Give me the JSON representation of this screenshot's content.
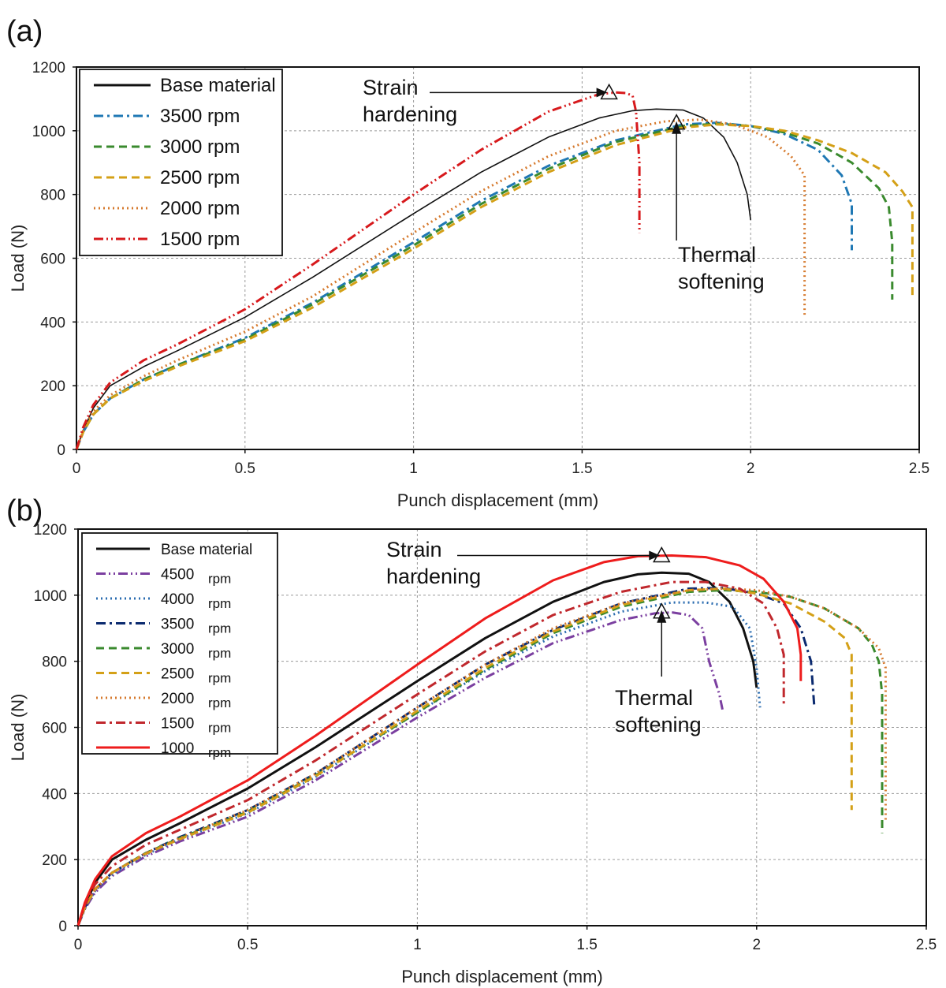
{
  "chart_data": [
    {
      "panel_label": "(a)",
      "type": "line",
      "xlabel": "Punch displacement (mm)",
      "ylabel": "Load (N)",
      "xlim": [
        0,
        2.5
      ],
      "ylim": [
        0,
        1200
      ],
      "xticks": [
        "0",
        "0.5",
        "1",
        "1.5",
        "2",
        "2.5"
      ],
      "yticks": [
        "0",
        "200",
        "400",
        "600",
        "800",
        "1000",
        "1200"
      ],
      "grid": true,
      "legend_position": "top-left",
      "series": [
        {
          "name": "Base material",
          "color": "#111111",
          "style": "solid",
          "x": [
            0,
            0.02,
            0.05,
            0.1,
            0.2,
            0.3,
            0.5,
            0.7,
            1.0,
            1.2,
            1.4,
            1.55,
            1.65,
            1.72,
            1.8,
            1.86,
            1.92,
            1.96,
            1.99,
            2.0
          ],
          "y": [
            0,
            60,
            130,
            200,
            260,
            310,
            415,
            540,
            740,
            870,
            980,
            1040,
            1063,
            1068,
            1065,
            1040,
            980,
            900,
            800,
            720
          ]
        },
        {
          "name": "3500 rpm",
          "color": "#1f78b4",
          "style": "dashdot",
          "x": [
            0,
            0.02,
            0.05,
            0.1,
            0.2,
            0.3,
            0.5,
            0.7,
            1.0,
            1.2,
            1.4,
            1.6,
            1.8,
            1.9,
            2.0,
            2.1,
            2.2,
            2.27,
            2.3,
            2.3
          ],
          "y": [
            0,
            55,
            110,
            160,
            220,
            265,
            350,
            460,
            650,
            780,
            890,
            970,
            1020,
            1025,
            1015,
            990,
            940,
            860,
            770,
            625
          ]
        },
        {
          "name": "3000 rpm",
          "color": "#3a8a2e",
          "style": "dashed",
          "x": [
            0,
            0.02,
            0.05,
            0.1,
            0.2,
            0.3,
            0.5,
            0.7,
            1.0,
            1.2,
            1.4,
            1.6,
            1.8,
            1.9,
            2.0,
            2.1,
            2.2,
            2.3,
            2.38,
            2.41,
            2.42,
            2.42
          ],
          "y": [
            0,
            55,
            110,
            160,
            220,
            265,
            345,
            455,
            640,
            770,
            880,
            965,
            1015,
            1022,
            1015,
            995,
            960,
            900,
            820,
            760,
            650,
            470
          ]
        },
        {
          "name": "2500 rpm",
          "color": "#d4a017",
          "style": "dashed",
          "x": [
            0,
            0.02,
            0.05,
            0.1,
            0.2,
            0.3,
            0.5,
            0.7,
            1.0,
            1.2,
            1.4,
            1.6,
            1.8,
            1.9,
            2.0,
            2.1,
            2.2,
            2.3,
            2.4,
            2.45,
            2.48,
            2.48
          ],
          "y": [
            0,
            55,
            110,
            160,
            215,
            260,
            340,
            445,
            630,
            760,
            870,
            955,
            1010,
            1020,
            1015,
            1000,
            970,
            930,
            870,
            810,
            760,
            480
          ]
        },
        {
          "name": "2000 rpm",
          "color": "#d67a2e",
          "style": "dotted",
          "x": [
            0,
            0.02,
            0.05,
            0.1,
            0.2,
            0.3,
            0.5,
            0.7,
            1.0,
            1.2,
            1.4,
            1.6,
            1.75,
            1.85,
            1.95,
            2.05,
            2.12,
            2.16,
            2.16
          ],
          "y": [
            0,
            60,
            120,
            170,
            230,
            280,
            370,
            480,
            680,
            810,
            920,
            1000,
            1030,
            1035,
            1020,
            980,
            920,
            860,
            420
          ]
        },
        {
          "name": "1500 rpm",
          "color": "#d7191c",
          "style": "dashdotdot",
          "x": [
            0,
            0.02,
            0.05,
            0.1,
            0.2,
            0.3,
            0.5,
            0.7,
            1.0,
            1.2,
            1.4,
            1.55,
            1.6,
            1.63,
            1.65,
            1.66,
            1.67,
            1.67
          ],
          "y": [
            0,
            70,
            140,
            210,
            280,
            330,
            440,
            580,
            800,
            940,
            1060,
            1115,
            1120,
            1118,
            1110,
            1060,
            900,
            680
          ]
        }
      ],
      "annotations": [
        {
          "text_lines": [
            "Strain",
            "hardening"
          ],
          "arrow_to": [
            1.58,
            1120
          ],
          "marker": "triangle"
        },
        {
          "text_lines": [
            "Thermal",
            "softening"
          ],
          "arrow_to": [
            1.78,
            1025
          ],
          "marker": "triangle"
        }
      ]
    },
    {
      "panel_label": "(b)",
      "type": "line",
      "xlabel": "Punch displacement (mm)",
      "ylabel": "Load (N)",
      "xlim": [
        0,
        2.5
      ],
      "ylim": [
        0,
        1200
      ],
      "xticks": [
        "0",
        "0.5",
        "1",
        "1.5",
        "2",
        "2.5"
      ],
      "yticks": [
        "0",
        "200",
        "400",
        "600",
        "800",
        "1000",
        "1200"
      ],
      "grid": true,
      "legend_position": "top-left",
      "series": [
        {
          "name": "Base material",
          "unit": "",
          "color": "#111111",
          "style": "solid",
          "x": [
            0,
            0.02,
            0.05,
            0.1,
            0.2,
            0.3,
            0.5,
            0.7,
            1.0,
            1.2,
            1.4,
            1.55,
            1.65,
            1.72,
            1.8,
            1.86,
            1.92,
            1.96,
            1.99,
            2.0
          ],
          "y": [
            0,
            60,
            130,
            200,
            260,
            310,
            415,
            540,
            740,
            870,
            980,
            1040,
            1063,
            1068,
            1065,
            1040,
            980,
            900,
            800,
            720
          ]
        },
        {
          "name": "4500",
          "unit": "rpm",
          "color": "#7b3fa0",
          "style": "dashdotdot",
          "x": [
            0,
            0.02,
            0.05,
            0.1,
            0.2,
            0.3,
            0.5,
            0.7,
            1.0,
            1.2,
            1.4,
            1.6,
            1.7,
            1.75,
            1.8,
            1.84,
            1.86,
            1.89,
            1.9
          ],
          "y": [
            0,
            50,
            100,
            150,
            210,
            255,
            330,
            440,
            630,
            750,
            855,
            925,
            945,
            948,
            940,
            900,
            800,
            700,
            650
          ]
        },
        {
          "name": "4000",
          "unit": "rpm",
          "color": "#2b6cb0",
          "style": "dotted",
          "x": [
            0,
            0.02,
            0.05,
            0.1,
            0.2,
            0.3,
            0.5,
            0.7,
            1.0,
            1.2,
            1.4,
            1.6,
            1.75,
            1.85,
            1.93,
            1.98,
            2.0,
            2.01
          ],
          "y": [
            0,
            52,
            105,
            155,
            215,
            262,
            340,
            450,
            645,
            770,
            875,
            950,
            978,
            978,
            965,
            900,
            780,
            660
          ]
        },
        {
          "name": "3500",
          "unit": "rpm",
          "color": "#0b2a6f",
          "style": "dashdot",
          "x": [
            0,
            0.02,
            0.05,
            0.1,
            0.2,
            0.3,
            0.5,
            0.7,
            1.0,
            1.2,
            1.4,
            1.6,
            1.8,
            1.9,
            2.0,
            2.08,
            2.13,
            2.16,
            2.17
          ],
          "y": [
            0,
            55,
            110,
            160,
            220,
            268,
            350,
            460,
            660,
            790,
            895,
            975,
            1020,
            1022,
            1005,
            975,
            900,
            800,
            660
          ]
        },
        {
          "name": "3000",
          "unit": "rpm",
          "color": "#3a8a2e",
          "style": "dashed",
          "x": [
            0,
            0.02,
            0.05,
            0.1,
            0.2,
            0.3,
            0.5,
            0.7,
            1.0,
            1.2,
            1.4,
            1.6,
            1.8,
            1.9,
            2.0,
            2.1,
            2.2,
            2.3,
            2.34,
            2.36,
            2.37,
            2.37
          ],
          "y": [
            0,
            55,
            110,
            160,
            220,
            265,
            345,
            455,
            645,
            775,
            885,
            965,
            1010,
            1015,
            1010,
            995,
            960,
            900,
            850,
            800,
            700,
            280
          ]
        },
        {
          "name": "2500",
          "unit": "rpm",
          "color": "#d4a017",
          "style": "dashed",
          "x": [
            0,
            0.02,
            0.05,
            0.1,
            0.2,
            0.3,
            0.5,
            0.7,
            1.0,
            1.2,
            1.4,
            1.6,
            1.8,
            1.9,
            2.0,
            2.1,
            2.2,
            2.26,
            2.28,
            2.28
          ],
          "y": [
            0,
            55,
            110,
            160,
            218,
            262,
            342,
            452,
            650,
            780,
            890,
            970,
            1015,
            1020,
            1005,
            975,
            920,
            870,
            820,
            350
          ]
        },
        {
          "name": "2000",
          "unit": "rpm",
          "color": "#d67a2e",
          "style": "dotted",
          "x": [
            0,
            0.02,
            0.05,
            0.1,
            0.2,
            0.3,
            0.5,
            0.7,
            1.0,
            1.2,
            1.4,
            1.6,
            1.8,
            1.9,
            2.0,
            2.1,
            2.2,
            2.3,
            2.36,
            2.38,
            2.38
          ],
          "y": [
            0,
            55,
            110,
            160,
            220,
            265,
            350,
            460,
            660,
            790,
            900,
            975,
            1015,
            1020,
            1015,
            995,
            960,
            900,
            840,
            780,
            320
          ]
        },
        {
          "name": "1500",
          "unit": "rpm",
          "color": "#c0282d",
          "style": "dashdot",
          "x": [
            0,
            0.02,
            0.05,
            0.1,
            0.2,
            0.3,
            0.5,
            0.7,
            1.0,
            1.2,
            1.4,
            1.6,
            1.75,
            1.85,
            1.95,
            2.02,
            2.06,
            2.08,
            2.08
          ],
          "y": [
            0,
            62,
            125,
            180,
            245,
            290,
            380,
            500,
            700,
            830,
            940,
            1010,
            1040,
            1040,
            1020,
            975,
            900,
            820,
            660
          ]
        },
        {
          "name": "1000",
          "unit": "rpm",
          "color": "#ee1c1c",
          "style": "solid",
          "x": [
            0,
            0.02,
            0.05,
            0.1,
            0.2,
            0.3,
            0.5,
            0.7,
            1.0,
            1.2,
            1.4,
            1.55,
            1.65,
            1.75,
            1.85,
            1.95,
            2.02,
            2.08,
            2.12,
            2.13,
            2.13
          ],
          "y": [
            0,
            70,
            140,
            210,
            280,
            330,
            440,
            575,
            790,
            930,
            1045,
            1100,
            1118,
            1120,
            1115,
            1090,
            1050,
            980,
            900,
            820,
            740
          ]
        }
      ],
      "annotations": [
        {
          "text_lines": [
            "Strain",
            "hardening"
          ],
          "arrow_to": [
            1.72,
            1120
          ],
          "marker": "triangle"
        },
        {
          "text_lines": [
            "Thermal",
            "softening"
          ],
          "arrow_to": [
            1.72,
            950
          ],
          "marker": "triangle"
        }
      ]
    }
  ]
}
